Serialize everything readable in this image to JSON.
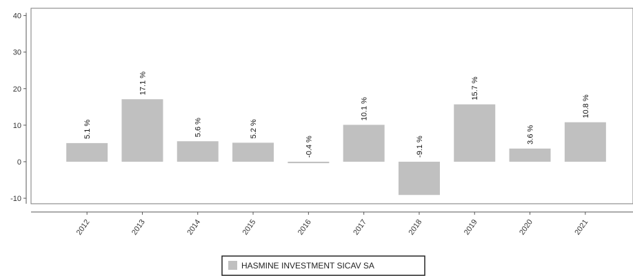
{
  "chart_data": {
    "type": "bar",
    "categories": [
      "2012",
      "2013",
      "2014",
      "2015",
      "2016",
      "2017",
      "2018",
      "2019",
      "2020",
      "2021"
    ],
    "series": [
      {
        "name": "HASMINE INVESTMENT SICAV SA",
        "values": [
          5.1,
          17.1,
          5.6,
          5.2,
          -0.4,
          10.1,
          -9.1,
          15.7,
          3.6,
          10.8
        ],
        "data_labels": [
          "5.1 %",
          "17.1 %",
          "5.6 %",
          "5.2 %",
          "-0.4 %",
          "10.1 %",
          "-9.1 %",
          "15.7 %",
          "3.6 %",
          "10.8 %"
        ]
      }
    ],
    "yticks": [
      -10,
      0,
      10,
      20,
      30,
      40
    ],
    "ylim": [
      -11.5,
      42
    ],
    "bar_color": "#c0c0c0",
    "grid": false,
    "legend_position": "bottom-center"
  }
}
